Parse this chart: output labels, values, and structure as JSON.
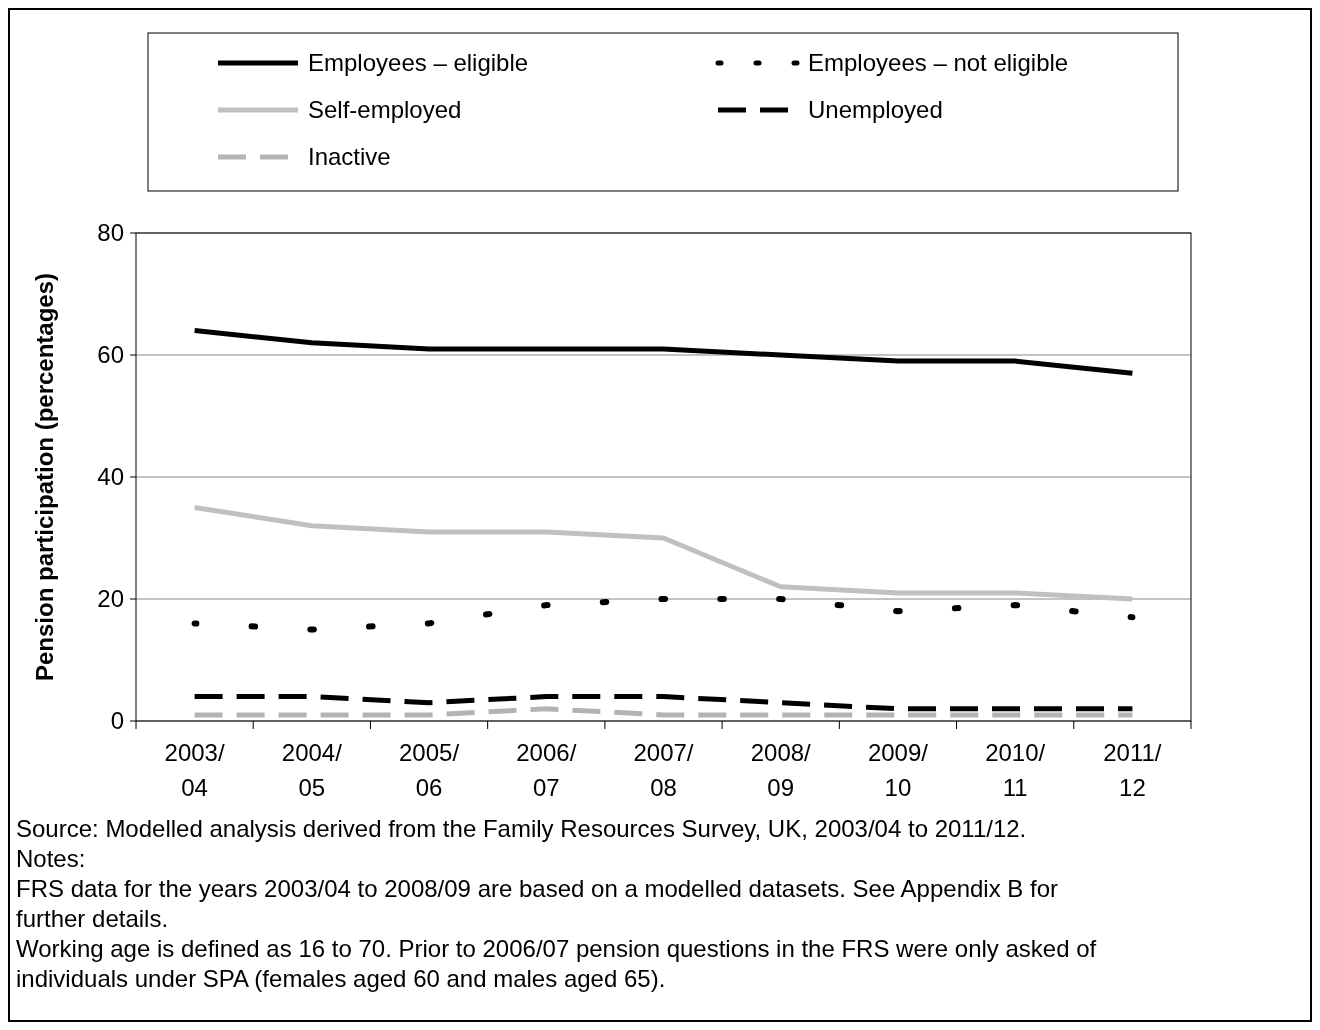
{
  "chart_data": {
    "type": "line",
    "ylabel": "Pension participation (percentages)",
    "categories": [
      "2003/\n04",
      "2004/\n05",
      "2005/\n06",
      "2006/\n07",
      "2007/\n08",
      "2008/\n09",
      "2009/\n10",
      "2010/\n11",
      "2011/\n12"
    ],
    "ylim": [
      0,
      80
    ],
    "yticks": [
      0,
      20,
      40,
      60,
      80
    ],
    "grid": "y",
    "legend": "top",
    "marker": "none",
    "series": [
      {
        "name": "Employees – eligible",
        "color": "#000000",
        "line_style": "solid",
        "values": [
          64,
          62,
          61,
          61,
          61,
          60,
          59,
          59,
          57
        ]
      },
      {
        "name": "Employees – not eligible",
        "color": "#000000",
        "line_style": "dotted",
        "values": [
          16,
          15,
          16,
          19,
          20,
          20,
          18,
          19,
          17
        ]
      },
      {
        "name": "Self-employed",
        "color": "#c0c0c0",
        "line_style": "solid",
        "values": [
          35,
          32,
          31,
          31,
          30,
          22,
          21,
          21,
          20
        ]
      },
      {
        "name": "Unemployed",
        "color": "#000000",
        "line_style": "dashed",
        "values": [
          4,
          4,
          3,
          4,
          4,
          3,
          2,
          2,
          2
        ]
      },
      {
        "name": "Inactive",
        "color": "#b3b3b3",
        "line_style": "dashed",
        "values": [
          1,
          1,
          1,
          2,
          1,
          1,
          1,
          1,
          1
        ]
      }
    ],
    "annotations": [
      "Source: Modelled analysis derived from the Family Resources Survey, UK, 2003/04 to 2011/12.",
      "Notes:",
      "FRS data for the years 2003/04 to 2008/09 are based on a modelled datasets. See Appendix B for further details.",
      "Working age is defined as 16 to 70. Prior to 2006/07 pension questions in the FRS were only asked of individuals under SPA (females aged 60 and males aged 65)."
    ]
  }
}
